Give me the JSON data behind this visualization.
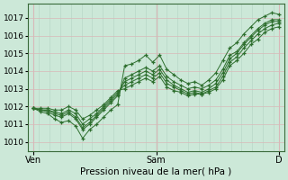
{
  "background_color": "#cce8d8",
  "grid_minor_color": "#b8d8c8",
  "grid_major_color": "#d8b8b8",
  "line_color": "#2d6e2d",
  "marker_color": "#2d6e2d",
  "xlabel": "Pression niveau de la mer( hPa )",
  "yticks": [
    1010,
    1011,
    1012,
    1013,
    1014,
    1015,
    1016,
    1017
  ],
  "ylim": [
    1009.5,
    1017.8
  ],
  "xlim": [
    0,
    48
  ],
  "xtick_labels": [
    "Ven",
    "Sam",
    "D"
  ],
  "xtick_positions": [
    1,
    24,
    47
  ],
  "vline_x": 24,
  "series": [
    [
      1011.9,
      1011.7,
      1011.6,
      1011.3,
      1011.1,
      1011.2,
      1010.9,
      1010.2,
      1010.7,
      1011.0,
      1011.4,
      1011.8,
      1012.1,
      1014.3,
      1014.4,
      1014.6,
      1014.9,
      1014.5,
      1014.9,
      1014.1,
      1013.8,
      1013.5,
      1013.3,
      1013.4,
      1013.2,
      1013.5,
      1013.9,
      1014.6,
      1015.3,
      1015.6,
      1016.1,
      1016.5,
      1016.9,
      1017.1,
      1017.3,
      1017.2
    ],
    [
      1011.9,
      1011.8,
      1011.7,
      1011.5,
      1011.4,
      1011.6,
      1011.3,
      1010.7,
      1011.0,
      1011.4,
      1011.8,
      1012.2,
      1012.6,
      1013.6,
      1013.8,
      1014.0,
      1014.2,
      1014.0,
      1014.3,
      1013.7,
      1013.4,
      1013.2,
      1013.0,
      1013.1,
      1013.0,
      1013.2,
      1013.5,
      1014.1,
      1014.9,
      1015.1,
      1015.6,
      1016.0,
      1016.4,
      1016.7,
      1016.9,
      1016.9
    ],
    [
      1011.9,
      1011.8,
      1011.8,
      1011.6,
      1011.5,
      1011.7,
      1011.4,
      1010.8,
      1011.1,
      1011.5,
      1011.9,
      1012.3,
      1012.7,
      1013.4,
      1013.6,
      1013.8,
      1014.0,
      1013.8,
      1014.1,
      1013.5,
      1013.2,
      1013.0,
      1012.8,
      1012.9,
      1012.8,
      1013.0,
      1013.3,
      1013.9,
      1014.7,
      1015.0,
      1015.5,
      1015.9,
      1016.3,
      1016.6,
      1016.8,
      1016.8
    ],
    [
      1011.9,
      1011.8,
      1011.8,
      1011.7,
      1011.6,
      1011.8,
      1011.6,
      1011.0,
      1011.3,
      1011.6,
      1012.0,
      1012.4,
      1012.8,
      1013.2,
      1013.4,
      1013.6,
      1013.8,
      1013.6,
      1013.9,
      1013.3,
      1013.1,
      1012.9,
      1012.7,
      1012.8,
      1012.7,
      1012.9,
      1013.1,
      1013.7,
      1014.5,
      1014.8,
      1015.3,
      1015.7,
      1016.1,
      1016.4,
      1016.6,
      1016.7
    ],
    [
      1011.9,
      1011.9,
      1011.9,
      1011.8,
      1011.8,
      1012.0,
      1011.8,
      1011.3,
      1011.5,
      1011.8,
      1012.1,
      1012.5,
      1012.9,
      1013.0,
      1013.2,
      1013.4,
      1013.6,
      1013.4,
      1013.7,
      1013.1,
      1012.9,
      1012.8,
      1012.6,
      1012.7,
      1012.7,
      1012.8,
      1013.0,
      1013.5,
      1014.3,
      1014.6,
      1015.0,
      1015.5,
      1015.8,
      1016.2,
      1016.4,
      1016.5
    ]
  ]
}
